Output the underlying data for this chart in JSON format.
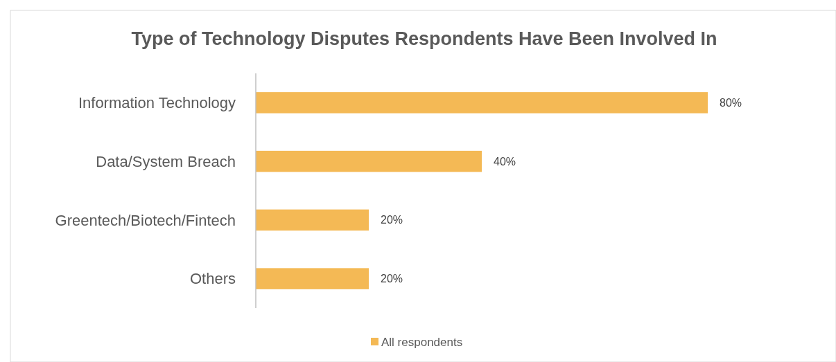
{
  "chart_data": {
    "type": "bar",
    "orientation": "horizontal",
    "title": "Type of Technology Disputes Respondents Have Been Involved In",
    "categories": [
      "Information Technology",
      "Data/System Breach",
      "Greentech/Biotech/Fintech",
      "Others"
    ],
    "series": [
      {
        "name": "All respondents",
        "color": "#f4b955",
        "values": [
          80,
          40,
          20,
          20
        ],
        "value_labels": [
          "80%",
          "40%",
          "20%",
          "20%"
        ]
      }
    ],
    "legend": "bottom"
  }
}
